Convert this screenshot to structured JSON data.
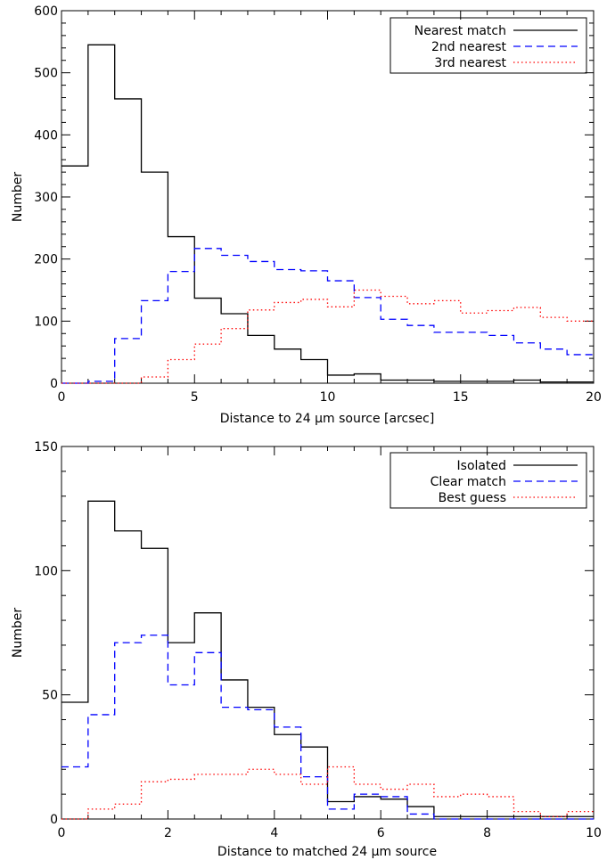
{
  "chart_data": [
    {
      "type": "step",
      "xlabel": "Distance to 24 μm source [arcsec]",
      "ylabel": "Number",
      "xlim": [
        0,
        20
      ],
      "ylim": [
        0,
        600
      ],
      "xticks": [
        0,
        5,
        10,
        15,
        20
      ],
      "yticks": [
        0,
        100,
        200,
        300,
        400,
        500,
        600
      ],
      "x_edges": [
        0,
        1,
        2,
        3,
        4,
        5,
        6,
        7,
        8,
        9,
        10,
        11,
        12,
        13,
        14,
        15,
        16,
        17,
        18,
        19,
        20
      ],
      "legend_position": "top-right",
      "series": [
        {
          "name": "Nearest match",
          "color": "#000000",
          "dash": "solid",
          "values": [
            350,
            545,
            458,
            340,
            236,
            137,
            112,
            77,
            55,
            38,
            13,
            15,
            5,
            5,
            3,
            3,
            3,
            5,
            2,
            2
          ]
        },
        {
          "name": "2nd nearest",
          "color": "#0000ff",
          "dash": "dashed",
          "values": [
            0,
            3,
            72,
            133,
            180,
            217,
            206,
            196,
            183,
            181,
            165,
            138,
            103,
            93,
            82,
            82,
            77,
            65,
            55,
            46
          ]
        },
        {
          "name": "3rd nearest",
          "color": "#ff0000",
          "dash": "dotted",
          "values": [
            0,
            0,
            0,
            10,
            38,
            63,
            88,
            118,
            130,
            135,
            123,
            150,
            140,
            128,
            133,
            113,
            117,
            122,
            106,
            100
          ]
        }
      ]
    },
    {
      "type": "step",
      "xlabel": "Distance to matched 24 μm source",
      "ylabel": "Number",
      "xlim": [
        0,
        10
      ],
      "ylim": [
        0,
        150
      ],
      "xticks": [
        0,
        2,
        4,
        6,
        8,
        10
      ],
      "yticks": [
        0,
        50,
        100,
        150
      ],
      "x_edges": [
        0,
        0.5,
        1,
        1.5,
        2,
        2.5,
        3,
        3.5,
        4,
        4.5,
        5,
        5.5,
        6,
        6.5,
        7,
        7.5,
        8,
        8.5,
        9,
        9.5,
        10
      ],
      "legend_position": "top-right",
      "series": [
        {
          "name": "Isolated",
          "color": "#000000",
          "dash": "solid",
          "values": [
            47,
            128,
            116,
            109,
            71,
            83,
            56,
            45,
            34,
            29,
            7,
            9,
            8,
            5,
            1,
            1,
            1,
            1,
            1,
            1
          ]
        },
        {
          "name": "Clear match",
          "color": "#0000ff",
          "dash": "dashed",
          "values": [
            21,
            42,
            71,
            74,
            54,
            67,
            45,
            44,
            37,
            17,
            4,
            10,
            9,
            2,
            0,
            0,
            0,
            0,
            0,
            0
          ]
        },
        {
          "name": "Best guess",
          "color": "#ff0000",
          "dash": "dotted",
          "values": [
            0,
            4,
            6,
            15,
            16,
            18,
            18,
            20,
            18,
            14,
            21,
            14,
            12,
            14,
            9,
            10,
            9,
            3,
            1,
            3
          ]
        }
      ]
    }
  ]
}
